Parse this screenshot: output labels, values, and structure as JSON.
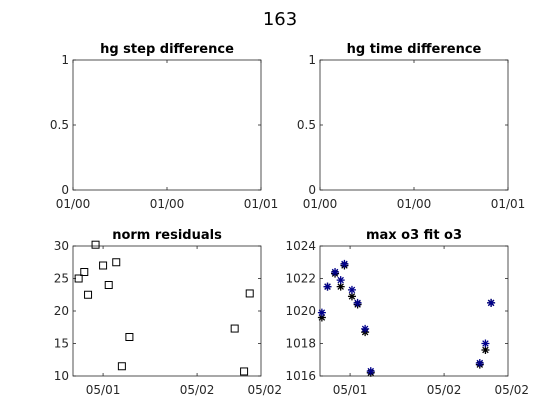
{
  "figure": {
    "suptitle": "163"
  },
  "chart_data": [
    {
      "type": "line",
      "title": "hg step difference",
      "xlabel": "",
      "ylabel": "",
      "x_ticks": [
        "01/00",
        "01/00",
        "01/01"
      ],
      "y_ticks": [
        "0",
        "0.5",
        "1"
      ],
      "ylim": [
        0,
        1
      ],
      "series": []
    },
    {
      "type": "line",
      "title": "hg time difference",
      "xlabel": "",
      "ylabel": "",
      "x_ticks": [
        "01/00",
        "01/00",
        "01/01"
      ],
      "y_ticks": [
        "0",
        "0.5",
        "1"
      ],
      "ylim": [
        0,
        1
      ],
      "series": []
    },
    {
      "type": "scatter",
      "title": "norm residuals",
      "xlabel": "",
      "ylabel": "",
      "x_ticks": [
        "05/01",
        "05/02",
        "05/02"
      ],
      "y_ticks": [
        "10",
        "15",
        "20",
        "25",
        "30"
      ],
      "ylim": [
        10,
        30
      ],
      "marker": "square",
      "marker_color": "#000000",
      "series": [
        {
          "x": [
            0.03,
            0.06,
            0.08,
            0.12,
            0.16,
            0.19,
            0.23,
            0.26,
            0.3,
            0.86,
            0.91,
            0.94
          ],
          "values": [
            25.0,
            26.0,
            22.5,
            30.2,
            27.0,
            24.0,
            27.5,
            11.5,
            16.0,
            17.3,
            10.7,
            22.7
          ]
        }
      ]
    },
    {
      "type": "scatter",
      "title": "max o3 fit o3",
      "xlabel": "",
      "ylabel": "",
      "x_ticks": [
        "05/01",
        "05/02",
        "05/02"
      ],
      "y_ticks": [
        "1016",
        "1018",
        "1020",
        "1022",
        "1024"
      ],
      "ylim": [
        1016,
        1024
      ],
      "marker": "asterisk",
      "series": [
        {
          "color": "#000000",
          "x": [
            0.01,
            0.04,
            0.08,
            0.11,
            0.13,
            0.17,
            0.2,
            0.24,
            0.27,
            0.85,
            0.88,
            0.91
          ],
          "values": [
            1019.6,
            1021.5,
            1022.3,
            1021.5,
            1022.8,
            1020.9,
            1020.4,
            1018.7,
            1016.2,
            1016.7,
            1017.6,
            1020.5
          ]
        },
        {
          "color": "#00008b",
          "x": [
            0.01,
            0.04,
            0.08,
            0.11,
            0.13,
            0.17,
            0.2,
            0.24,
            0.27,
            0.85,
            0.88,
            0.91
          ],
          "values": [
            1019.9,
            1021.5,
            1022.4,
            1021.9,
            1022.9,
            1021.3,
            1020.5,
            1018.9,
            1016.3,
            1016.8,
            1018.0,
            1020.5
          ]
        }
      ]
    }
  ]
}
